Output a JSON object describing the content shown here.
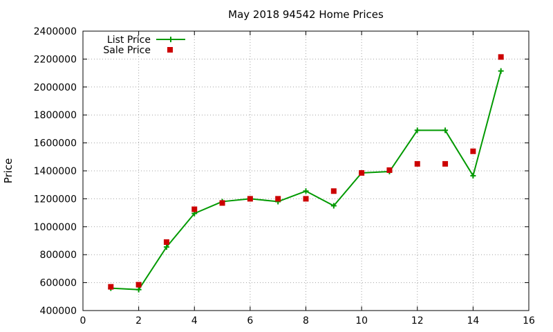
{
  "chart_data": {
    "type": "line",
    "title": "May 2018 94542 Home Prices",
    "xlabel": "",
    "ylabel": "Price",
    "xlim": [
      0,
      16
    ],
    "ylim": [
      400000,
      2400000
    ],
    "xticks": [
      0,
      2,
      4,
      6,
      8,
      10,
      12,
      14,
      16
    ],
    "yticks": [
      400000,
      600000,
      800000,
      1000000,
      1200000,
      1400000,
      1600000,
      1800000,
      2000000,
      2200000,
      2400000
    ],
    "grid": true,
    "legend_position": "top-left",
    "x": [
      1,
      2,
      3,
      4,
      5,
      6,
      7,
      8,
      9,
      10,
      11,
      12,
      13,
      14,
      15
    ],
    "series": [
      {
        "name": "List Price",
        "style": "line-plus",
        "color": "#009900",
        "values": [
          560000,
          550000,
          855000,
          1095000,
          1180000,
          1200000,
          1180000,
          1255000,
          1150000,
          1385000,
          1395000,
          1690000,
          1690000,
          1365000,
          2115000
        ]
      },
      {
        "name": "Sale Price",
        "style": "square-points",
        "color": "#cc0000",
        "values": [
          570000,
          585000,
          890000,
          1125000,
          1170000,
          1200000,
          1200000,
          1200000,
          1255000,
          1385000,
          1405000,
          1450000,
          1450000,
          1540000,
          2215000
        ]
      }
    ]
  }
}
